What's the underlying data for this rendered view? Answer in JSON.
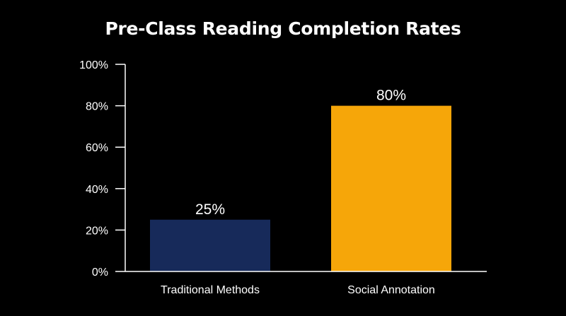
{
  "chart_data": {
    "type": "bar",
    "title": "Pre-Class Reading Completion Rates",
    "categories": [
      "Traditional Methods",
      "Social Annotation"
    ],
    "values": [
      25,
      80
    ],
    "data_labels": [
      "25%",
      "80%"
    ],
    "colors": [
      "#172a5a",
      "#f6a609"
    ],
    "ylim": [
      0,
      100
    ],
    "yticks": [
      0,
      20,
      40,
      60,
      80,
      100
    ],
    "ytick_labels": [
      "0%",
      "20%",
      "40%",
      "60%",
      "80%",
      "100%"
    ],
    "xlabel": "",
    "ylabel": "",
    "grid": false,
    "legend": "none"
  },
  "theme": {
    "background": "#000000",
    "text": "#ffffff",
    "axis": "#ffffff"
  }
}
